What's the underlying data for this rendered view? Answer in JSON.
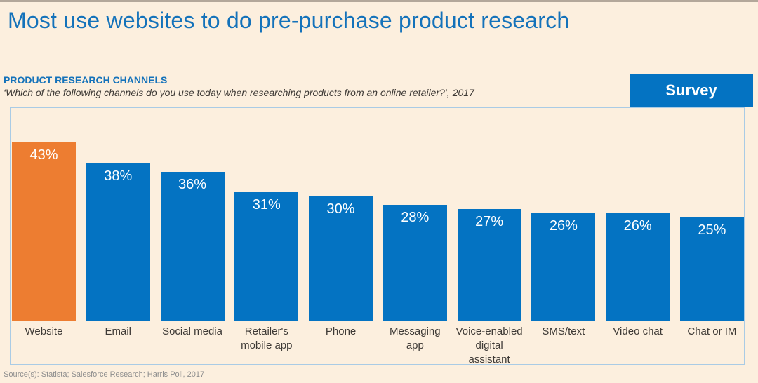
{
  "page": {
    "title": "Most use websites to do pre-purchase product research",
    "kicker": "PRODUCT RESEARCH CHANNELS",
    "question": "‘Which of the following channels do you use today when researching products from an online retailer?’, 2017",
    "badge_label": "Survey",
    "source": "Source(s): Statista; Salesforce Research; Harris Poll, 2017"
  },
  "colors": {
    "background": "#FCEFDE",
    "top_strip": "#B3A79A",
    "title_blue": "#1472BA",
    "bar_blue": "#0473C2",
    "bar_highlight_orange": "#ED7D31",
    "panel_border": "#A9CBE5",
    "label_text": "#3E3A36",
    "value_text": "#FFFFFF",
    "source_text": "#8E8E8E"
  },
  "chart_data": {
    "type": "bar",
    "title": "PRODUCT RESEARCH CHANNELS",
    "subtitle": "‘Which of the following channels do you use today when researching products from an online retailer?’, 2017",
    "categories": [
      "Website",
      "Email",
      "Social media",
      "Retailer's mobile app",
      "Phone",
      "Messaging app",
      "Voice-enabled digital assistant",
      "SMS/text",
      "Video chat",
      "Chat or IM"
    ],
    "categories_display": [
      "Website",
      "Email",
      "Social media",
      "Retailer's\nmobile app",
      "Phone",
      "Messaging\napp",
      "Voice-enabled\ndigital\nassistant",
      "SMS/text",
      "Video chat",
      "Chat or IM"
    ],
    "values": [
      43,
      38,
      36,
      31,
      30,
      28,
      27,
      26,
      26,
      25
    ],
    "value_labels": [
      "43%",
      "38%",
      "36%",
      "31%",
      "30%",
      "28%",
      "27%",
      "26%",
      "26%",
      "25%"
    ],
    "unit": "%",
    "highlight_index": 0,
    "ylim": [
      0,
      43
    ],
    "grid": false,
    "legend": false,
    "value_label_position": "inside-top",
    "orientation": "vertical"
  }
}
